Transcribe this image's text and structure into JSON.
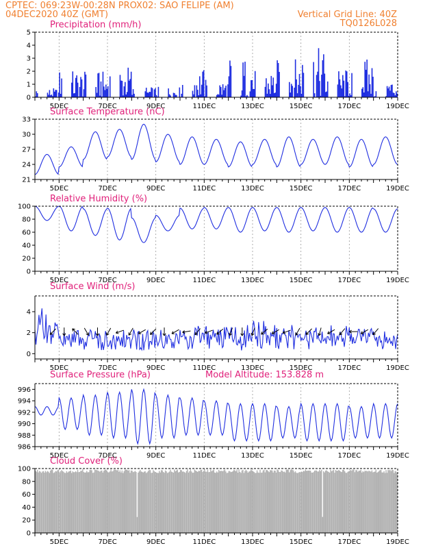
{
  "header": {
    "line1_left": "CPTEC:   069:23W-00:28N   PROX02: SAO FELIPE (AM)",
    "line2_left": "04DEC2020 40Z (GMT)",
    "line2_right": "Vertical Grid Line: 40Z",
    "line3_right": "TQ0126L028"
  },
  "colors": {
    "header": "#f08030",
    "panel_title": "#e0207a",
    "series": "#1f2ee0",
    "cloud": "#b0b0b0",
    "grid": "#999999"
  },
  "x_axis": {
    "start": "04DEC2020 06Z",
    "end": "19DEC2020 00Z",
    "tick_labels": [
      "5DEC",
      "7DEC",
      "9DEC",
      "11DEC",
      "13DEC",
      "15DEC",
      "17DEC",
      "19DEC"
    ],
    "tick_day_offsets": [
      1,
      3,
      5,
      7,
      9,
      11,
      13,
      15
    ],
    "total_days": 15
  },
  "chart_data": [
    {
      "type": "bar",
      "title": "Precipitation (mm/h)",
      "ylim": [
        0,
        5
      ],
      "yticks": [
        "0",
        "1",
        "2",
        "3",
        "4",
        "5"
      ],
      "daily_max": [
        0.7,
        2.1,
        2.0,
        2.5,
        0.8,
        0.8,
        2.3,
        1.4,
        3.1,
        2.2,
        3.0,
        3.8,
        2.2,
        3.0,
        1.4
      ],
      "hours_active": [
        [
          0,
          2
        ],
        [
          12,
          23
        ]
      ],
      "value_note": "hourly bars, max values per day estimated"
    },
    {
      "type": "line",
      "title": "Surface Temperature (nC)",
      "ylim": [
        21,
        33
      ],
      "yticks": [
        "21",
        "24",
        "27",
        "30",
        "33"
      ],
      "daily_min": [
        22.0,
        23.5,
        25.0,
        25.5,
        25.0,
        24.5,
        24.0,
        24.0,
        23.5,
        24.0,
        23.5,
        24.0,
        24.0,
        23.5,
        24.0
      ],
      "daily_max": [
        26.0,
        27.5,
        30.5,
        31.0,
        32.0,
        30.0,
        29.5,
        29.0,
        28.5,
        29.0,
        29.5,
        29.0,
        29.5,
        29.0,
        29.5
      ]
    },
    {
      "type": "line",
      "title": "Relative Humidity (%)",
      "ylim": [
        0,
        100
      ],
      "yticks": [
        "0",
        "20",
        "40",
        "60",
        "80",
        "100"
      ],
      "daily_min": [
        78,
        62,
        55,
        48,
        44,
        62,
        65,
        65,
        60,
        62,
        60,
        62,
        60,
        60,
        60
      ],
      "daily_max": [
        100,
        100,
        96,
        97,
        82,
        86,
        97,
        98,
        98,
        98,
        98,
        98,
        98,
        98,
        96
      ]
    },
    {
      "type": "line",
      "title": "Surface Wind (m/s)",
      "ylim": [
        -0.5,
        5.5
      ],
      "yticks": [
        "0",
        "2",
        "4"
      ],
      "daily_min": [
        0.8,
        0.4,
        0.3,
        0.4,
        0.3,
        0.4,
        0.4,
        0.3,
        0.3,
        0.4,
        0.3,
        0.4,
        0.4,
        0.4,
        0.4
      ],
      "daily_max": [
        4.6,
        2.4,
        2.5,
        2.6,
        2.4,
        2.5,
        2.7,
        2.8,
        2.8,
        3.4,
        3.2,
        2.6,
        2.8,
        2.6,
        2.4
      ],
      "arrow_angles_deg": [
        225,
        270,
        135,
        300,
        270,
        240,
        200,
        240,
        210,
        225,
        270,
        210,
        190,
        230,
        200,
        220,
        250,
        270,
        250,
        220,
        210,
        200,
        240,
        225,
        255,
        210,
        230,
        180,
        210,
        230
      ]
    },
    {
      "type": "line",
      "title": "Surface Pressure (hPa)",
      "subtitle": "Model Altitude: 153.828 m",
      "ylim": [
        986,
        997
      ],
      "yticks": [
        "986",
        "988",
        "990",
        "992",
        "994",
        "996"
      ],
      "daily_min": [
        991.5,
        989.0,
        988.0,
        987.5,
        986.5,
        987.5,
        988.0,
        988.0,
        987.0,
        987.0,
        987.5,
        987.0,
        987.0,
        987.5,
        987.5
      ],
      "daily_max": [
        993.0,
        994.5,
        995.0,
        995.5,
        996.0,
        995.0,
        994.5,
        994.0,
        993.5,
        993.5,
        993.0,
        993.5,
        993.5,
        993.0,
        993.5
      ]
    },
    {
      "type": "bar",
      "title": "Cloud Cover (%)",
      "ylim": [
        0,
        100
      ],
      "yticks": [
        "0",
        "20",
        "40",
        "60",
        "80",
        "100"
      ],
      "typical": 96,
      "min_estimate": 5
    }
  ]
}
